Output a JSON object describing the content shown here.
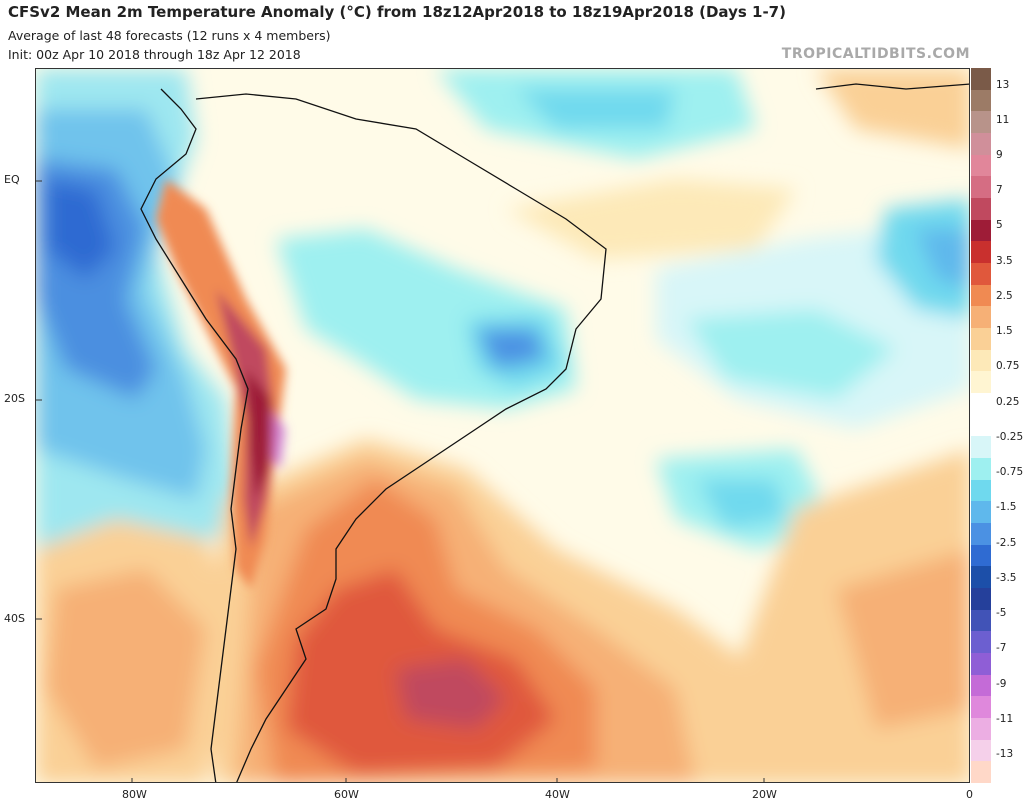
{
  "header": {
    "title": "CFSv2 Mean 2m Temperature Anomaly (°C) from 18z12Apr2018 to 18z19Apr2018 (Days 1-7)",
    "subtitle1": "Average of last 48 forecasts (12 runs x 4 members)",
    "subtitle2": "Init: 00z Apr 10 2018 through 18z Apr 12 2018",
    "credit": "TROPICALTIDBITS.COM"
  },
  "map": {
    "lat_labels": [
      "EQ",
      "20S",
      "40S"
    ],
    "lon_labels": [
      "80W",
      "60W",
      "40W",
      "20W",
      "0"
    ],
    "region": "South America and South Atlantic"
  },
  "colorbar": {
    "labels": [
      "13",
      "11",
      "9",
      "7",
      "5",
      "3.5",
      "2.5",
      "1.5",
      "0.75",
      "0.25",
      "-0.25",
      "-0.75",
      "-1.5",
      "-2.5",
      "-3.5",
      "-5",
      "-7",
      "-9",
      "-11",
      "-13"
    ],
    "colors": [
      "#7a5a48",
      "#9c7b66",
      "#b8938a",
      "#d08f9a",
      "#e1869a",
      "#d56d83",
      "#c0495f",
      "#9e1c37",
      "#c9302e",
      "#e0583c",
      "#f08a52",
      "#f6b076",
      "#fad096",
      "#fde9b8",
      "#fff5d2",
      "#ffffff",
      "#ffffff",
      "#d8f6f8",
      "#9ef0f0",
      "#6fd9ee",
      "#5fb8ec",
      "#4b91e3",
      "#2f6bd2",
      "#1c4fa9",
      "#25409b",
      "#4153b7",
      "#6c5fd0",
      "#8f5ed6",
      "#c46bd7",
      "#df88dc",
      "#ecaee3",
      "#f5d0ea",
      "#ffd8c8"
    ]
  }
}
